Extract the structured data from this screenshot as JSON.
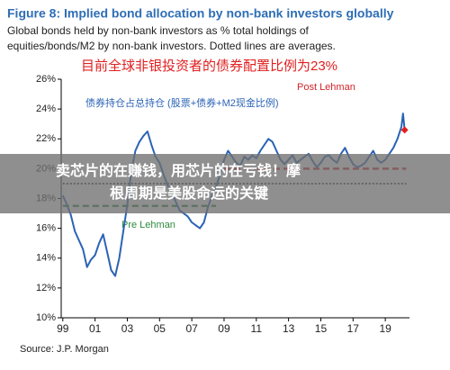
{
  "chart_data": {
    "type": "line",
    "title": "Figure 8: Implied bond allocation by non-bank investors globally",
    "subtitle_lines": [
      "Global bonds held by non-bank investors as % total holdings of",
      "equities/bonds/M2 by non-bank investors. Dotted lines are averages."
    ],
    "annotation_cn": "目前全球非银投资者的债券配置比例为23%",
    "series_note": "债券持仓占总持仓 (股票+债券+M2现金比例)",
    "source": "Source: J.P. Morgan",
    "x": [
      1999,
      1999.25,
      1999.5,
      1999.75,
      2000,
      2000.25,
      2000.5,
      2000.75,
      2001,
      2001.25,
      2001.5,
      2001.75,
      2002,
      2002.25,
      2002.5,
      2002.75,
      2003,
      2003.25,
      2003.5,
      2003.75,
      2004,
      2004.25,
      2004.5,
      2004.75,
      2005,
      2005.25,
      2005.5,
      2005.75,
      2006,
      2006.25,
      2006.5,
      2006.75,
      2007,
      2007.25,
      2007.5,
      2007.75,
      2008,
      2008.25,
      2008.5,
      2008.75,
      2009,
      2009.25,
      2009.5,
      2009.75,
      2010,
      2010.25,
      2010.5,
      2010.75,
      2011,
      2011.25,
      2011.5,
      2011.75,
      2012,
      2012.25,
      2012.5,
      2012.75,
      2013,
      2013.25,
      2013.5,
      2013.75,
      2014,
      2014.25,
      2014.5,
      2014.75,
      2015,
      2015.25,
      2015.5,
      2015.75,
      2016,
      2016.25,
      2016.5,
      2016.75,
      2017,
      2017.25,
      2017.5,
      2017.75,
      2018,
      2018.25,
      2018.5,
      2018.75,
      2019,
      2019.25,
      2019.5,
      2019.75,
      2020,
      2020.1,
      2020.2
    ],
    "series": [
      {
        "color": "#2b63b5",
        "values": [
          18.2,
          17.6,
          16.9,
          15.8,
          15.2,
          14.6,
          13.4,
          13.9,
          14.2,
          15.0,
          15.6,
          14.4,
          13.2,
          12.8,
          14.0,
          15.8,
          17.6,
          19.8,
          21.2,
          21.8,
          22.2,
          22.5,
          21.6,
          20.8,
          20.4,
          19.6,
          18.9,
          18.4,
          17.8,
          17.2,
          17.0,
          16.8,
          16.4,
          16.2,
          16.0,
          16.4,
          17.4,
          18.2,
          18.8,
          19.6,
          20.6,
          21.2,
          20.8,
          20.4,
          20.2,
          20.8,
          20.6,
          20.9,
          20.7,
          21.2,
          21.6,
          22.0,
          21.8,
          21.2,
          20.6,
          20.3,
          20.6,
          20.9,
          20.4,
          20.6,
          20.8,
          21.0,
          20.5,
          20.1,
          20.4,
          20.8,
          20.9,
          20.6,
          20.4,
          21.0,
          21.4,
          20.8,
          20.3,
          20.1,
          20.2,
          20.4,
          20.8,
          21.2,
          20.6,
          20.4,
          20.6,
          21.0,
          21.4,
          22.0,
          22.8,
          23.7,
          22.6
        ]
      }
    ],
    "last_point_marker": {
      "shape": "diamond",
      "color": "#e02020"
    },
    "averages": [
      {
        "label": "Pre Lehman",
        "value": 17.5,
        "x": [
          1999,
          2008.5
        ],
        "color": "#2e8b3e"
      },
      {
        "label": "Post Lehman",
        "value": 20,
        "x": [
          2009,
          2020.3
        ],
        "color": "#d2232a"
      },
      {
        "value": 19,
        "x": [
          1999,
          2020.3
        ],
        "color": "#000000"
      }
    ],
    "xlim": [
      1998.9,
      2020.5
    ],
    "xticks": [
      {
        "value": 1999,
        "label": "99"
      },
      {
        "value": 2001,
        "label": "01"
      },
      {
        "value": 2003,
        "label": "03"
      },
      {
        "value": 2005,
        "label": "05"
      },
      {
        "value": 2007,
        "label": "07"
      },
      {
        "value": 2009,
        "label": "09"
      },
      {
        "value": 2011,
        "label": "11"
      },
      {
        "value": 2013,
        "label": "13"
      },
      {
        "value": 2015,
        "label": "15"
      },
      {
        "value": 2017,
        "label": "17"
      },
      {
        "value": 2019,
        "label": "19"
      }
    ],
    "ylim": [
      10,
      26
    ],
    "yticks": [
      {
        "value": 10,
        "label": "10%"
      },
      {
        "value": 12,
        "label": "12%"
      },
      {
        "value": 14,
        "label": "14%"
      },
      {
        "value": 16,
        "label": "16%"
      },
      {
        "value": 18,
        "label": "18%"
      },
      {
        "value": 20,
        "label": "20%"
      },
      {
        "value": 22,
        "label": "22%"
      },
      {
        "value": 24,
        "label": "24%"
      },
      {
        "value": 26,
        "label": "26%"
      }
    ],
    "grid": false
  },
  "overlay": {
    "lines": [
      "卖芯片的在赚钱，用芯片的在亏钱！摩",
      "根周期是美股命运的关键"
    ]
  }
}
